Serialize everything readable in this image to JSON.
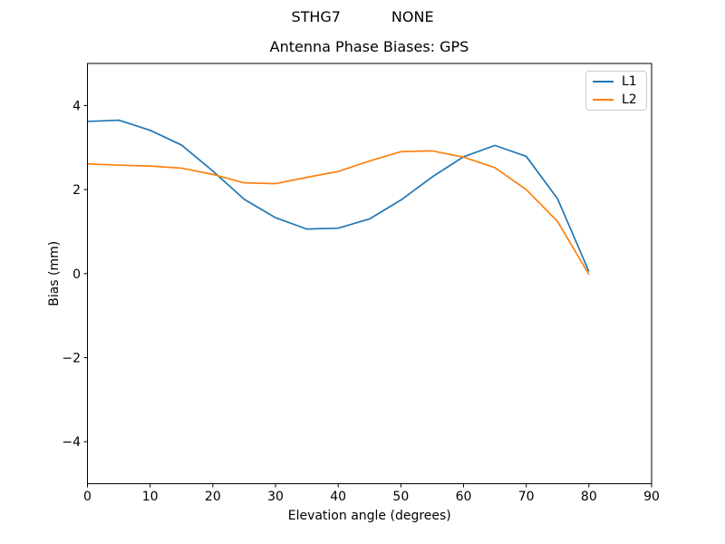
{
  "titles": {
    "suptitle": "STHG7           NONE",
    "axes_title": "Antenna Phase Biases: GPS"
  },
  "chart_data": {
    "type": "line",
    "suptitle": "STHG7           NONE",
    "title": "Antenna Phase Biases: GPS",
    "xlabel": "Elevation angle (degrees)",
    "ylabel": "Bias (mm)",
    "xlim": [
      0,
      90
    ],
    "ylim": [
      -5,
      5
    ],
    "x_tick_values": [
      0,
      10,
      20,
      30,
      40,
      50,
      60,
      70,
      80,
      90
    ],
    "x_tick_labels": [
      "0",
      "10",
      "20",
      "30",
      "40",
      "50",
      "60",
      "70",
      "80",
      "90"
    ],
    "y_tick_values": [
      -4,
      -2,
      0,
      2,
      4
    ],
    "y_tick_labels": [
      "−4",
      "−2",
      "0",
      "2",
      "4"
    ],
    "grid": false,
    "legend_position": "upper right",
    "x": [
      0,
      5,
      10,
      15,
      20,
      25,
      30,
      35,
      40,
      45,
      50,
      55,
      60,
      65,
      70,
      75,
      80
    ],
    "series": [
      {
        "name": "L1",
        "color": "#1f77b4",
        "values": [
          3.62,
          3.65,
          3.41,
          3.06,
          2.44,
          1.77,
          1.33,
          1.06,
          1.08,
          1.3,
          1.75,
          2.3,
          2.78,
          3.05,
          2.79,
          1.78,
          0.05
        ]
      },
      {
        "name": "L2",
        "color": "#ff7f0e",
        "values": [
          2.61,
          2.58,
          2.56,
          2.51,
          2.36,
          2.16,
          2.14,
          2.29,
          2.43,
          2.68,
          2.9,
          2.92,
          2.77,
          2.52,
          2.0,
          1.24,
          -0.02
        ]
      }
    ]
  },
  "colors": {
    "background": "#ffffff",
    "spine": "#000000",
    "tick": "#000000",
    "legend_border": "#cccccc",
    "series_l1": "#1f77b4",
    "series_l2": "#ff7f0e"
  }
}
